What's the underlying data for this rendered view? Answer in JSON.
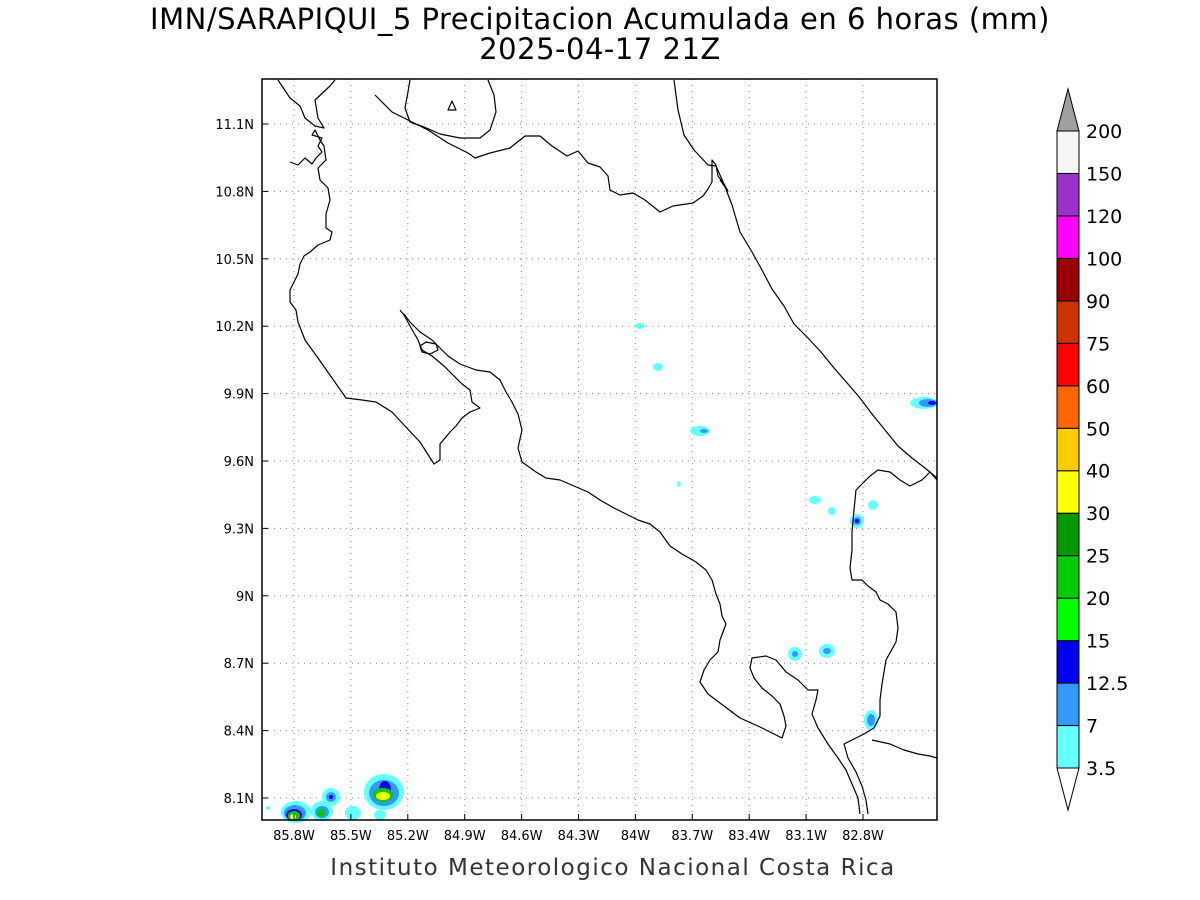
{
  "title": {
    "line1": "IMN/SARAPIQUI_5 Precipitacion Acumulada en 6 horas (mm)",
    "line2": "2025-04-17 21Z"
  },
  "footer": "Instituto Meteorologico Nacional Costa Rica",
  "axes": {
    "lon_ticks": [
      "85.8W",
      "85.5W",
      "85.2W",
      "84.9W",
      "84.6W",
      "84.3W",
      "84W",
      "83.7W",
      "83.4W",
      "83.1W",
      "82.8W"
    ],
    "lat_ticks": [
      "11.1N",
      "10.8N",
      "10.5N",
      "10.2N",
      "9.9N",
      "9.6N",
      "9.3N",
      "9N",
      "8.7N",
      "8.4N",
      "8.1N"
    ],
    "grid": "dotted"
  },
  "colorbar": {
    "levels": [
      "3.5",
      "7",
      "12.5",
      "15",
      "20",
      "25",
      "30",
      "40",
      "50",
      "60",
      "75",
      "90",
      "100",
      "120",
      "150",
      "200"
    ],
    "colors": [
      "#66ffff",
      "#3399ff",
      "#0000ee",
      "#00ff00",
      "#00cc00",
      "#009900",
      "#ffff00",
      "#ffcc00",
      "#ff6600",
      "#ff0000",
      "#cc3300",
      "#990000",
      "#ff00ff",
      "#9933cc",
      "#f5f5f5",
      "#a0a0a0"
    ]
  }
}
